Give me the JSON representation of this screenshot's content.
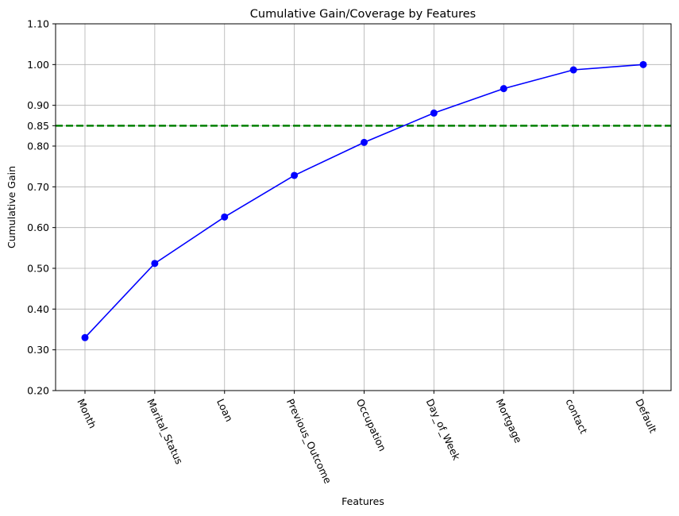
{
  "chart_data": {
    "type": "line",
    "title": "Cumulative Gain/Coverage by Features",
    "xlabel": "Features",
    "ylabel": "Cumulative Gain",
    "categories": [
      "Month",
      "Marital_Status",
      "Loan",
      "Previous_Outcome",
      "Occupation",
      "Day_of_Week",
      "Mortgage",
      "contact",
      "Default"
    ],
    "series": [
      {
        "values": [
          0.33,
          0.512,
          0.626,
          0.728,
          0.809,
          0.881,
          0.941,
          0.987,
          1.0
        ],
        "color": "#0000ff",
        "marker": "circle"
      }
    ],
    "reference_line": {
      "y": 0.85,
      "color": "#008000",
      "style": "dashed"
    },
    "ylim": [
      0.2,
      1.1
    ],
    "yticks": [
      "0.20",
      "0.30",
      "0.40",
      "0.50",
      "0.60",
      "0.70",
      "0.80",
      "0.85",
      "0.90",
      "1.00",
      "1.10"
    ],
    "grid": true,
    "xtick_rotation": -65
  }
}
